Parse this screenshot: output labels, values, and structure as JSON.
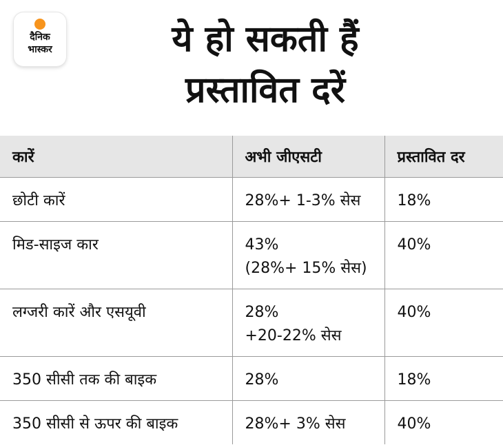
{
  "logo": {
    "line1": "दैनिक",
    "line2": "भास्कर"
  },
  "title": {
    "line1": "ये हो सकती हैं",
    "line2": "प्रस्तावित दरें"
  },
  "table": {
    "headers": [
      "कारें",
      "अभी जीएसटी",
      "प्रस्तावित दर"
    ],
    "rows": [
      {
        "item": "छोटी कारें",
        "current": [
          "28%+ 1-3% सेस"
        ],
        "proposed": "18%"
      },
      {
        "item": "मिड-साइज कार",
        "current": [
          "43%",
          "(28%+ 15% सेस)"
        ],
        "proposed": "40%"
      },
      {
        "item": "लग्जरी कारें और एसयूवी",
        "current": [
          "28%",
          "+20-22% सेस"
        ],
        "proposed": "40%"
      },
      {
        "item": "350 सीसी तक की बाइक",
        "current": [
          "28%"
        ],
        "proposed": "18%"
      },
      {
        "item": "350 सीसी से ऊपर की बाइक",
        "current": [
          "28%+ 3% सेस"
        ],
        "proposed": "40%"
      }
    ]
  },
  "colors": {
    "header_bg": "#e6e6e6",
    "logo_dot": "#f7941d",
    "grid": "#9a9a9a"
  }
}
